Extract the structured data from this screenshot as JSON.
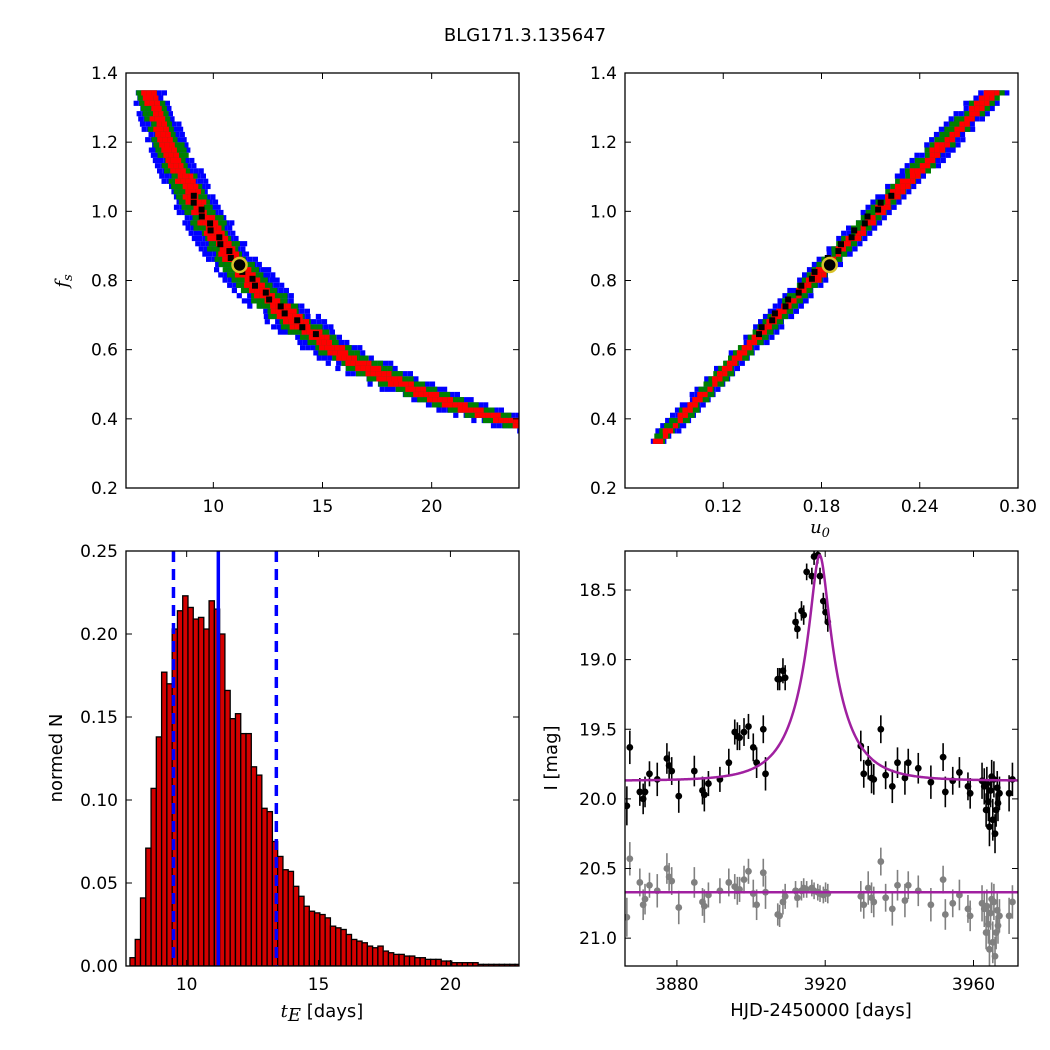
{
  "figure": {
    "title": "BLG171.3.135647"
  },
  "colors": {
    "sigma1": "#ff0000",
    "sigma2": "#008000",
    "sigma3": "#0000ff",
    "best_chain": "#000000",
    "marker_fill": "#000000",
    "marker_edge": "#d9c32b",
    "hist_bar": "#d40000",
    "hist_edge": "#000000",
    "vline": "#0000ff",
    "model": "#a020a0",
    "data_primary": "#000000",
    "data_secondary": "#808080",
    "background": "#ffffff"
  },
  "chart_data": [
    {
      "id": "tE_fs",
      "type": "heatmap",
      "xlabel": "",
      "ylabel": "f_s",
      "xlim": [
        6,
        24
      ],
      "ylim": [
        0.2,
        1.4
      ],
      "xticks": [
        "10",
        "15",
        "20"
      ],
      "xtick_values": [
        10,
        15,
        20
      ],
      "yticks": [
        "0.2",
        "0.4",
        "0.6",
        "0.8",
        "1.0",
        "1.2",
        "1.4"
      ],
      "ytick_values": [
        0.2,
        0.4,
        0.6,
        0.8,
        1.0,
        1.2,
        1.4
      ],
      "relation": "fs * tE ≈ 9.4 (curved anti-correlation band)",
      "x_range": [
        8.0,
        22.6
      ],
      "y_range": [
        0.33,
        1.35
      ],
      "best_fit": {
        "x": 11.2,
        "fs": 0.845
      }
    },
    {
      "id": "u0_fs",
      "type": "heatmap",
      "xlabel": "u_0",
      "ylabel": "",
      "xlim": [
        0.06,
        0.3
      ],
      "ylim": [
        0.2,
        1.4
      ],
      "xticks": [
        "0.12",
        "0.18",
        "0.24",
        "0.30"
      ],
      "xtick_values": [
        0.12,
        0.18,
        0.24,
        0.3
      ],
      "yticks": [
        "0.2",
        "0.4",
        "0.6",
        "0.8",
        "1.0",
        "1.2",
        "1.4"
      ],
      "ytick_values": [
        0.2,
        0.4,
        0.6,
        0.8,
        1.0,
        1.2,
        1.4
      ],
      "relation": "fs rises linearly with u0",
      "x_range": [
        0.077,
        0.283
      ],
      "y_range": [
        0.33,
        1.35
      ],
      "best_fit": {
        "x": 0.185,
        "fs": 0.845
      }
    },
    {
      "id": "tE_hist",
      "type": "bar",
      "xlabel": "t_E [days]",
      "ylabel": "normed N",
      "xlim": [
        7.7,
        22.6
      ],
      "ylim": [
        0,
        0.25
      ],
      "xticks": [
        "10",
        "15",
        "20"
      ],
      "xtick_values": [
        10,
        15,
        20
      ],
      "yticks": [
        "0.00",
        "0.05",
        "0.10",
        "0.15",
        "0.20",
        "0.25"
      ],
      "ytick_values": [
        0,
        0.05,
        0.1,
        0.15,
        0.2,
        0.25
      ],
      "bin_start": 7.85,
      "bin_width": 0.2,
      "values": [
        0.005,
        0.016,
        0.041,
        0.071,
        0.107,
        0.138,
        0.177,
        0.17,
        0.203,
        0.214,
        0.223,
        0.216,
        0.209,
        0.21,
        0.203,
        0.22,
        0.215,
        0.2,
        0.166,
        0.149,
        0.152,
        0.14,
        0.14,
        0.12,
        0.115,
        0.095,
        0.093,
        0.075,
        0.066,
        0.058,
        0.057,
        0.048,
        0.042,
        0.036,
        0.033,
        0.032,
        0.031,
        0.029,
        0.024,
        0.023,
        0.022,
        0.019,
        0.016,
        0.015,
        0.014,
        0.012,
        0.011,
        0.012,
        0.009,
        0.008,
        0.007,
        0.007,
        0.006,
        0.006,
        0.005,
        0.005,
        0.004,
        0.004,
        0.004,
        0.003,
        0.003,
        0.002,
        0.002,
        0.002,
        0.002,
        0.002,
        0.001,
        0.001,
        0.001,
        0.001,
        0.001,
        0.001,
        0.001,
        0.001
      ],
      "vlines": [
        {
          "x": 9.5,
          "style": "dashed"
        },
        {
          "x": 11.2,
          "style": "solid"
        },
        {
          "x": 13.4,
          "style": "dashed"
        }
      ]
    },
    {
      "id": "lightcurve",
      "type": "scatter",
      "xlabel": "HJD-2450000 [days]",
      "ylabel": "I [mag]",
      "xlim": [
        3866,
        3972
      ],
      "ylim": [
        21.2,
        18.22
      ],
      "y_inverted": true,
      "xticks": [
        "3880",
        "3920",
        "3960"
      ],
      "xtick_values": [
        3880,
        3920,
        3960
      ],
      "yticks": [
        "18.5",
        "19.0",
        "19.5",
        "20.0",
        "20.5",
        "21.0"
      ],
      "ytick_values": [
        18.5,
        19.0,
        19.5,
        20.0,
        20.5,
        21.0
      ],
      "model": {
        "t0": 3918.5,
        "tE": 11.2,
        "u0": 0.185,
        "fs": 0.845,
        "mag_baseline": 19.87,
        "residual_baseline": 20.67
      },
      "series": [
        {
          "role": "data",
          "points": [
            [
              3866.5,
              20.05,
              0.14
            ],
            [
              3867.3,
              19.63,
              0.12
            ],
            [
              3870.0,
              19.95,
              0.1
            ],
            [
              3870.9,
              20.0,
              0.11
            ],
            [
              3871.4,
              19.95,
              0.11
            ],
            [
              3872.6,
              19.82,
              0.09
            ],
            [
              3874.7,
              19.86,
              0.12
            ],
            [
              3877.3,
              19.71,
              0.11
            ],
            [
              3877.9,
              19.76,
              0.1
            ],
            [
              3878.6,
              19.8,
              0.1
            ],
            [
              3880.5,
              19.98,
              0.12
            ],
            [
              3884.7,
              19.8,
              0.11
            ],
            [
              3886.9,
              19.94,
              0.1
            ],
            [
              3887.4,
              19.97,
              0.12
            ],
            [
              3888.5,
              19.89,
              0.09
            ],
            [
              3891.6,
              19.86,
              0.09
            ],
            [
              3894.0,
              19.74,
              0.1
            ],
            [
              3895.6,
              19.52,
              0.09
            ],
            [
              3896.3,
              19.55,
              0.1
            ],
            [
              3896.9,
              19.56,
              0.09
            ],
            [
              3898.1,
              19.52,
              0.1
            ],
            [
              3899.3,
              19.48,
              0.09
            ],
            [
              3900.6,
              19.63,
              0.1
            ],
            [
              3901.5,
              19.74,
              0.11
            ],
            [
              3903.3,
              19.5,
              0.1
            ],
            [
              3903.9,
              19.82,
              0.12
            ],
            [
              3907.2,
              19.14,
              0.08
            ],
            [
              3907.7,
              19.14,
              0.08
            ],
            [
              3908.6,
              19.08,
              0.09
            ],
            [
              3909.2,
              19.13,
              0.09
            ],
            [
              3912.0,
              18.73,
              0.07
            ],
            [
              3912.5,
              18.78,
              0.07
            ],
            [
              3913.6,
              18.65,
              0.07
            ],
            [
              3914.2,
              18.68,
              0.07
            ],
            [
              3915.0,
              18.37,
              0.06
            ],
            [
              3916.4,
              18.4,
              0.06
            ],
            [
              3917.0,
              18.26,
              0.06
            ],
            [
              3918.0,
              18.25,
              0.06
            ],
            [
              3918.6,
              18.4,
              0.06
            ],
            [
              3919.5,
              18.58,
              0.06
            ],
            [
              3920.1,
              18.66,
              0.07
            ],
            [
              3920.7,
              18.73,
              0.07
            ],
            [
              3929.6,
              19.62,
              0.11
            ],
            [
              3930.4,
              19.82,
              0.1
            ],
            [
              3931.6,
              19.74,
              0.12
            ],
            [
              3932.5,
              19.85,
              0.11
            ],
            [
              3933.1,
              19.86,
              0.11
            ],
            [
              3935.0,
              19.5,
              0.1
            ],
            [
              3936.3,
              19.83,
              0.1
            ],
            [
              3938.1,
              19.91,
              0.12
            ],
            [
              3939.5,
              19.74,
              0.11
            ],
            [
              3941.5,
              19.85,
              0.12
            ],
            [
              3942.4,
              19.74,
              0.1
            ],
            [
              3945.1,
              19.78,
              0.11
            ],
            [
              3948.5,
              19.88,
              0.12
            ],
            [
              3951.8,
              19.7,
              0.1
            ],
            [
              3952.4,
              19.95,
              0.11
            ],
            [
              3954.4,
              19.87,
              0.1
            ],
            [
              3956.2,
              19.81,
              0.11
            ],
            [
              3958.5,
              19.91,
              0.1
            ],
            [
              3959.1,
              19.96,
              0.11
            ],
            [
              3962.3,
              19.87,
              0.13
            ],
            [
              3962.9,
              19.91,
              0.13
            ],
            [
              3963.4,
              20.08,
              0.12
            ],
            [
              3963.6,
              19.89,
              0.12
            ],
            [
              3964.0,
              20.02,
              0.14
            ],
            [
              3964.3,
              20.2,
              0.14
            ],
            [
              3964.6,
              19.94,
              0.12
            ],
            [
              3964.9,
              19.84,
              0.12
            ],
            [
              3965.2,
              20.15,
              0.15
            ],
            [
              3965.5,
              19.86,
              0.13
            ],
            [
              3965.8,
              20.25,
              0.14
            ],
            [
              3966.1,
              20.08,
              0.12
            ],
            [
              3966.4,
              19.92,
              0.12
            ],
            [
              3966.6,
              20.03,
              0.13
            ],
            [
              3967.0,
              19.96,
              0.12
            ],
            [
              3969.6,
              19.96,
              0.13
            ],
            [
              3970.5,
              19.86,
              0.12
            ]
          ]
        },
        {
          "role": "residuals",
          "points": [
            [
              3866.5,
              20.85,
              0.14
            ],
            [
              3867.3,
              20.43,
              0.12
            ],
            [
              3870.0,
              20.6,
              0.1
            ],
            [
              3870.9,
              20.76,
              0.11
            ],
            [
              3871.4,
              20.72,
              0.11
            ],
            [
              3872.6,
              20.62,
              0.09
            ],
            [
              3874.7,
              20.66,
              0.12
            ],
            [
              3877.3,
              20.5,
              0.11
            ],
            [
              3877.9,
              20.56,
              0.1
            ],
            [
              3878.6,
              20.59,
              0.1
            ],
            [
              3880.5,
              20.78,
              0.12
            ],
            [
              3884.7,
              20.6,
              0.11
            ],
            [
              3886.9,
              20.74,
              0.1
            ],
            [
              3887.4,
              20.77,
              0.12
            ],
            [
              3888.5,
              20.69,
              0.09
            ],
            [
              3891.6,
              20.66,
              0.09
            ],
            [
              3894.0,
              20.6,
              0.1
            ],
            [
              3895.6,
              20.63,
              0.09
            ],
            [
              3896.3,
              20.66,
              0.1
            ],
            [
              3896.9,
              20.65,
              0.09
            ],
            [
              3898.1,
              20.58,
              0.1
            ],
            [
              3899.3,
              20.52,
              0.09
            ],
            [
              3900.6,
              20.68,
              0.1
            ],
            [
              3901.5,
              20.76,
              0.11
            ],
            [
              3903.3,
              20.53,
              0.1
            ],
            [
              3903.9,
              20.67,
              0.12
            ],
            [
              3907.2,
              20.83,
              0.08
            ],
            [
              3907.7,
              20.84,
              0.08
            ],
            [
              3908.6,
              20.74,
              0.09
            ],
            [
              3909.2,
              20.7,
              0.09
            ],
            [
              3912.0,
              20.66,
              0.07
            ],
            [
              3912.5,
              20.71,
              0.07
            ],
            [
              3913.6,
              20.66,
              0.07
            ],
            [
              3914.2,
              20.64,
              0.07
            ],
            [
              3915.0,
              20.65,
              0.06
            ],
            [
              3916.4,
              20.64,
              0.06
            ],
            [
              3917.0,
              20.66,
              0.06
            ],
            [
              3918.0,
              20.67,
              0.06
            ],
            [
              3918.6,
              20.68,
              0.06
            ],
            [
              3919.5,
              20.69,
              0.06
            ],
            [
              3920.1,
              20.67,
              0.07
            ],
            [
              3920.7,
              20.68,
              0.07
            ],
            [
              3929.6,
              20.7,
              0.11
            ],
            [
              3930.4,
              20.76,
              0.1
            ],
            [
              3931.6,
              20.64,
              0.12
            ],
            [
              3932.5,
              20.71,
              0.11
            ],
            [
              3933.1,
              20.74,
              0.11
            ],
            [
              3935.0,
              20.45,
              0.1
            ],
            [
              3936.3,
              20.71,
              0.1
            ],
            [
              3938.1,
              20.79,
              0.12
            ],
            [
              3939.5,
              20.62,
              0.11
            ],
            [
              3941.5,
              20.73,
              0.12
            ],
            [
              3942.4,
              20.62,
              0.1
            ],
            [
              3945.1,
              20.66,
              0.11
            ],
            [
              3948.5,
              20.76,
              0.12
            ],
            [
              3951.8,
              20.58,
              0.1
            ],
            [
              3952.4,
              20.83,
              0.11
            ],
            [
              3954.4,
              20.75,
              0.1
            ],
            [
              3956.2,
              20.69,
              0.11
            ],
            [
              3958.5,
              20.79,
              0.1
            ],
            [
              3959.1,
              20.84,
              0.11
            ],
            [
              3962.3,
              20.75,
              0.13
            ],
            [
              3962.9,
              20.79,
              0.13
            ],
            [
              3963.4,
              20.96,
              0.12
            ],
            [
              3963.6,
              20.77,
              0.12
            ],
            [
              3964.0,
              20.9,
              0.14
            ],
            [
              3964.3,
              21.08,
              0.14
            ],
            [
              3964.6,
              20.82,
              0.12
            ],
            [
              3964.9,
              20.72,
              0.12
            ],
            [
              3965.2,
              21.03,
              0.15
            ],
            [
              3965.5,
              20.74,
              0.13
            ],
            [
              3965.8,
              21.13,
              0.14
            ],
            [
              3966.1,
              20.96,
              0.12
            ],
            [
              3966.4,
              20.8,
              0.12
            ],
            [
              3966.6,
              20.91,
              0.13
            ],
            [
              3967.0,
              20.84,
              0.12
            ],
            [
              3969.6,
              20.84,
              0.13
            ],
            [
              3970.5,
              20.74,
              0.12
            ]
          ]
        }
      ]
    }
  ]
}
